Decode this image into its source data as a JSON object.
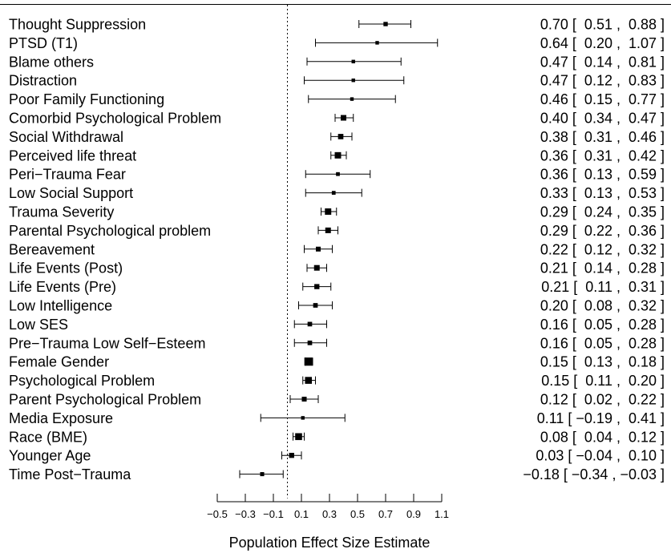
{
  "chart_data": {
    "type": "forest",
    "xlabel": "Population Effect Size Estimate",
    "xlim": [
      -0.5,
      1.1
    ],
    "xticks": [
      "−0.5",
      "−0.3",
      "−0.1",
      "0.1",
      "0.3",
      "0.5",
      "0.7",
      "0.9",
      "1.1"
    ],
    "reference_line": 0,
    "rows": [
      {
        "label": "Thought Suppression",
        "est": 0.7,
        "lo": 0.51,
        "hi": 0.88,
        "ci_text": "0.70 [  0.51 ,  0.88 ]",
        "weight": 0.9
      },
      {
        "label": "PTSD (T1)",
        "est": 0.64,
        "lo": 0.2,
        "hi": 1.07,
        "ci_text": "0.64 [  0.20 ,  1.07 ]",
        "weight": 0.6
      },
      {
        "label": "Blame others",
        "est": 0.47,
        "lo": 0.14,
        "hi": 0.81,
        "ci_text": "0.47 [  0.14 ,  0.81 ]",
        "weight": 0.6
      },
      {
        "label": "Distraction",
        "est": 0.47,
        "lo": 0.12,
        "hi": 0.83,
        "ci_text": "0.47 [  0.12 ,  0.83 ]",
        "weight": 0.6
      },
      {
        "label": "Poor Family Functioning",
        "est": 0.46,
        "lo": 0.15,
        "hi": 0.77,
        "ci_text": "0.46 [  0.15 ,  0.77 ]",
        "weight": 0.6
      },
      {
        "label": "Comorbid Psychological Problem",
        "est": 0.4,
        "lo": 0.34,
        "hi": 0.47,
        "ci_text": "0.40 [  0.34 ,  0.47 ]",
        "weight": 1.4
      },
      {
        "label": "Social Withdrawal",
        "est": 0.38,
        "lo": 0.31,
        "hi": 0.46,
        "ci_text": "0.38 [  0.31 ,  0.46 ]",
        "weight": 1.3
      },
      {
        "label": "Perceived life threat",
        "est": 0.36,
        "lo": 0.31,
        "hi": 0.42,
        "ci_text": "0.36 [  0.31 ,  0.42 ]",
        "weight": 1.7
      },
      {
        "label": "Peri−Trauma Fear",
        "est": 0.36,
        "lo": 0.13,
        "hi": 0.59,
        "ci_text": "0.36 [  0.13 ,  0.59 ]",
        "weight": 0.7
      },
      {
        "label": "Low Social Support",
        "est": 0.33,
        "lo": 0.13,
        "hi": 0.53,
        "ci_text": "0.33 [  0.13 ,  0.53 ]",
        "weight": 0.7
      },
      {
        "label": "Trauma Severity",
        "est": 0.29,
        "lo": 0.24,
        "hi": 0.35,
        "ci_text": "0.29 [  0.24 ,  0.35 ]",
        "weight": 1.7
      },
      {
        "label": "Parental Psychological problem",
        "est": 0.29,
        "lo": 0.22,
        "hi": 0.36,
        "ci_text": "0.29 [  0.22 ,  0.36 ]",
        "weight": 1.4
      },
      {
        "label": "Bereavement",
        "est": 0.22,
        "lo": 0.12,
        "hi": 0.32,
        "ci_text": "0.22 [  0.12 ,  0.32 ]",
        "weight": 1.1
      },
      {
        "label": "Life Events (Post)",
        "est": 0.21,
        "lo": 0.14,
        "hi": 0.28,
        "ci_text": "0.21 [  0.14 ,  0.28 ]",
        "weight": 1.4
      },
      {
        "label": "Life Events (Pre)",
        "est": 0.21,
        "lo": 0.11,
        "hi": 0.31,
        "ci_text": "0.21 [  0.11 ,  0.31 ]",
        "weight": 1.2
      },
      {
        "label": "Low Intelligence",
        "est": 0.2,
        "lo": 0.08,
        "hi": 0.32,
        "ci_text": "0.20 [  0.08 ,  0.32 ]",
        "weight": 1.0
      },
      {
        "label": "Low SES",
        "est": 0.16,
        "lo": 0.05,
        "hi": 0.28,
        "ci_text": "0.16 [  0.05 ,  0.28 ]",
        "weight": 1.0
      },
      {
        "label": "Pre−Trauma Low Self−Esteem",
        "est": 0.16,
        "lo": 0.05,
        "hi": 0.28,
        "ci_text": "0.16 [  0.05 ,  0.28 ]",
        "weight": 1.0
      },
      {
        "label": "Female Gender",
        "est": 0.15,
        "lo": 0.13,
        "hi": 0.18,
        "ci_text": "0.15 [  0.13 ,  0.18 ]",
        "weight": 2.4
      },
      {
        "label": "Psychological Problem",
        "est": 0.15,
        "lo": 0.11,
        "hi": 0.2,
        "ci_text": "0.15 [  0.11 ,  0.20 ]",
        "weight": 1.9
      },
      {
        "label": "Parent Psychological Problem",
        "est": 0.12,
        "lo": 0.02,
        "hi": 0.22,
        "ci_text": "0.12 [  0.02 ,  0.22 ]",
        "weight": 1.1
      },
      {
        "label": "Media Exposure",
        "est": 0.11,
        "lo": -0.19,
        "hi": 0.41,
        "ci_text": "0.11 [ −0.19 ,  0.41 ]",
        "weight": 0.6
      },
      {
        "label": "Race (BME)",
        "est": 0.08,
        "lo": 0.04,
        "hi": 0.12,
        "ci_text": "0.08 [  0.04 ,  0.12 ]",
        "weight": 1.9
      },
      {
        "label": "Younger Age",
        "est": 0.03,
        "lo": -0.04,
        "hi": 0.1,
        "ci_text": "0.03 [ −0.04 ,  0.10 ]",
        "weight": 1.2
      },
      {
        "label": "Time Post−Trauma",
        "est": -0.18,
        "lo": -0.34,
        "hi": -0.03,
        "ci_text": "−0.18 [ −0.34 , −0.03 ]",
        "weight": 0.8
      }
    ]
  }
}
